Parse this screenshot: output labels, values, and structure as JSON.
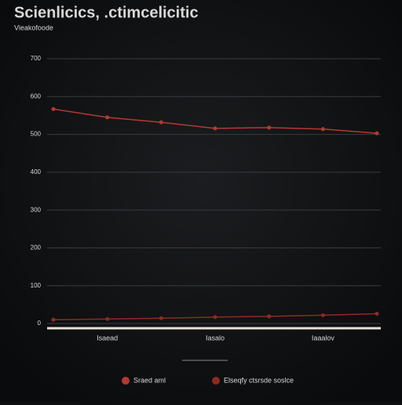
{
  "chart_data": {
    "type": "line",
    "title": "Scienlicics, .ctimcelicitic",
    "subtitle": "Vieakofoode",
    "categories": [
      null,
      "Isaead",
      null,
      "Iasalo",
      null,
      "Iaaalov",
      null
    ],
    "series": [
      {
        "name": "Sraed aml",
        "color": "#b33a30",
        "values": [
          567,
          545,
          532,
          516,
          518,
          514,
          503
        ]
      },
      {
        "name": "Elseqfy ctsrsde soslce",
        "color": "#8e2a22",
        "values": [
          10,
          12,
          14,
          17,
          19,
          22,
          26
        ]
      }
    ],
    "ylim": [
      0,
      700
    ],
    "yticks": [
      0,
      100,
      200,
      300,
      400,
      500,
      600,
      700
    ],
    "grid": true
  }
}
